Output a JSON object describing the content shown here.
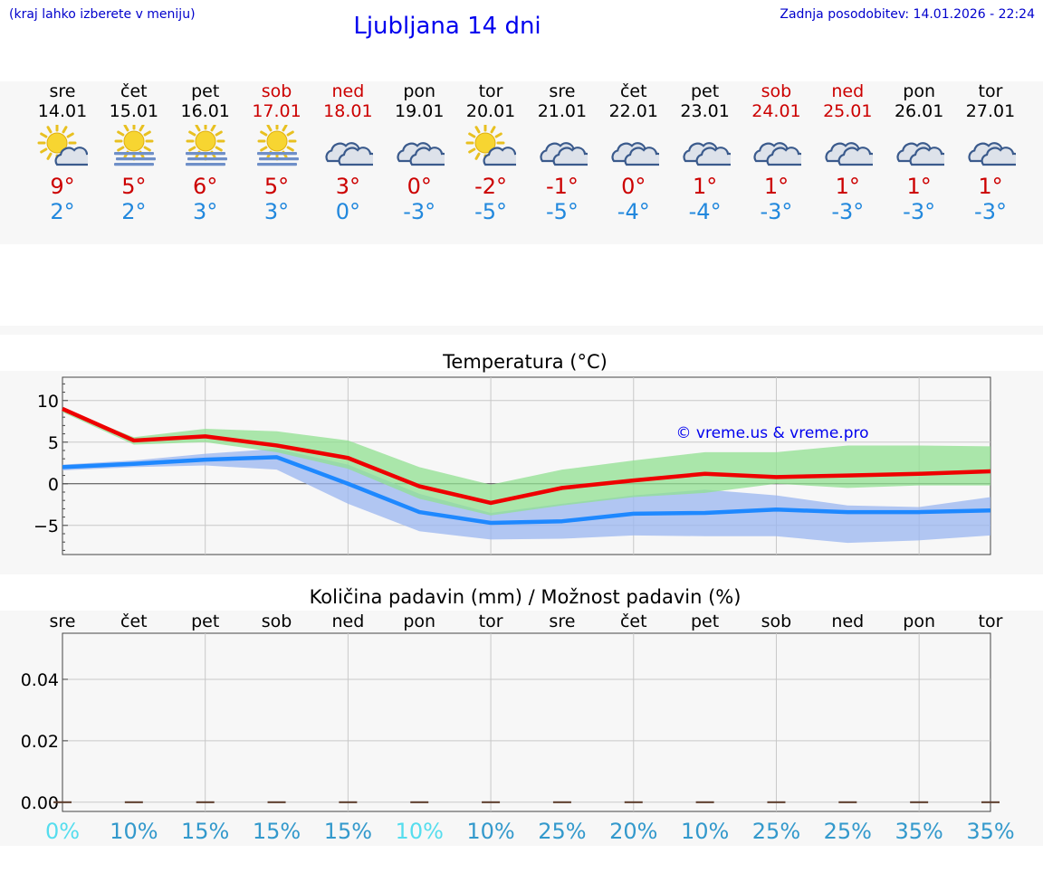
{
  "header": {
    "note": "(kraj lahko izberete v meniju)",
    "title": "Ljubljana 14 dni",
    "updated": "Zadnja posodobitev: 14.01.2026 - 22:24"
  },
  "days": [
    {
      "name": "sre",
      "date": "14.01",
      "weekend": false,
      "icon": "sun-cloud-icon",
      "tmax": "9°",
      "tmin": "2°"
    },
    {
      "name": "čet",
      "date": "15.01",
      "weekend": false,
      "icon": "sun-fog-icon",
      "tmax": "5°",
      "tmin": "2°"
    },
    {
      "name": "pet",
      "date": "16.01",
      "weekend": false,
      "icon": "sun-fog-icon",
      "tmax": "6°",
      "tmin": "3°"
    },
    {
      "name": "sob",
      "date": "17.01",
      "weekend": true,
      "icon": "sun-fog-icon",
      "tmax": "5°",
      "tmin": "3°"
    },
    {
      "name": "ned",
      "date": "18.01",
      "weekend": true,
      "icon": "cloudy-icon",
      "tmax": "3°",
      "tmin": "0°"
    },
    {
      "name": "pon",
      "date": "19.01",
      "weekend": false,
      "icon": "cloudy-icon",
      "tmax": "0°",
      "tmin": "-3°"
    },
    {
      "name": "tor",
      "date": "20.01",
      "weekend": false,
      "icon": "sun-cloud-icon",
      "tmax": "-2°",
      "tmin": "-5°"
    },
    {
      "name": "sre",
      "date": "21.01",
      "weekend": false,
      "icon": "cloudy-icon",
      "tmax": "-1°",
      "tmin": "-5°"
    },
    {
      "name": "čet",
      "date": "22.01",
      "weekend": false,
      "icon": "cloudy-icon",
      "tmax": "0°",
      "tmin": "-4°"
    },
    {
      "name": "pet",
      "date": "23.01",
      "weekend": false,
      "icon": "cloudy-icon",
      "tmax": "1°",
      "tmin": "-4°"
    },
    {
      "name": "sob",
      "date": "24.01",
      "weekend": true,
      "icon": "cloudy-icon",
      "tmax": "1°",
      "tmin": "-3°"
    },
    {
      "name": "ned",
      "date": "25.01",
      "weekend": true,
      "icon": "cloudy-icon",
      "tmax": "1°",
      "tmin": "-3°"
    },
    {
      "name": "pon",
      "date": "26.01",
      "weekend": false,
      "icon": "cloudy-icon",
      "tmax": "1°",
      "tmin": "-3°"
    },
    {
      "name": "tor",
      "date": "27.01",
      "weekend": false,
      "icon": "cloudy-icon",
      "tmax": "1°",
      "tmin": "-3°"
    }
  ],
  "colors": {
    "max_line": "#ee0000",
    "min_line": "#1e88ff",
    "max_band": "#90e090",
    "min_band": "#9ab6f0",
    "weekend": "#cc0000",
    "weekday": "#000000",
    "low_prob": "#55ddee",
    "prob": "#3399cc"
  },
  "chart_data": [
    {
      "type": "line",
      "title": "Temperatura (°C)",
      "watermark": "© vreme.us & vreme.pro",
      "ylim": [
        -8.5,
        12.8
      ],
      "yticks": [
        10,
        5,
        0,
        -5
      ],
      "ytick_labels": [
        "10",
        "5",
        "0",
        "−5"
      ],
      "grid": true,
      "series": [
        {
          "role": "max",
          "values": [
            9,
            5.2,
            5.7,
            4.6,
            3.1,
            -0.3,
            -2.3,
            -0.5,
            0.4,
            1.2,
            0.8,
            1.0,
            1.2,
            1.5
          ],
          "band_high": [
            9,
            5.6,
            6.6,
            6.3,
            5.2,
            2,
            -0.1,
            1.7,
            2.8,
            3.8,
            3.8,
            4.6,
            4.6,
            4.5
          ],
          "band_low": [
            8.6,
            4.7,
            5,
            3.8,
            1.8,
            -1.8,
            -3.8,
            -2.6,
            -1.6,
            -1.1,
            0,
            -0.5,
            -0.2,
            -0.2
          ]
        },
        {
          "role": "min",
          "values": [
            2,
            2.4,
            2.9,
            3.2,
            0,
            -3.4,
            -4.7,
            -4.5,
            -3.6,
            -3.5,
            -3.1,
            -3.4,
            -3.4,
            -3.2
          ],
          "band_high": [
            2.3,
            2.8,
            3.6,
            4.2,
            2.3,
            -1.2,
            -3.5,
            -2.4,
            -1.4,
            -0.7,
            -1.4,
            -2.6,
            -2.8,
            -1.6
          ],
          "band_low": [
            1.6,
            2,
            2.2,
            1.7,
            -2.4,
            -5.7,
            -6.7,
            -6.6,
            -6.2,
            -6.3,
            -6.3,
            -7.1,
            -6.8,
            -6.2
          ]
        }
      ]
    },
    {
      "type": "bar",
      "title": "Količina padavin (mm) / Možnost padavin (%)",
      "categories": [
        "sre",
        "čet",
        "pet",
        "sob",
        "ned",
        "pon",
        "tor",
        "sre",
        "čet",
        "pet",
        "sob",
        "ned",
        "pon",
        "tor"
      ],
      "values": [
        0,
        0,
        0,
        0,
        0,
        0,
        0,
        0,
        0,
        0,
        0,
        0,
        0,
        0
      ],
      "ylim": [
        -0.003,
        0.055
      ],
      "yticks": [
        0.04,
        0.02,
        0.0
      ],
      "ytick_labels": [
        "0.04",
        "0.02",
        "0.00"
      ],
      "probability": [
        "0%",
        "10%",
        "15%",
        "15%",
        "15%",
        "10%",
        "10%",
        "25%",
        "20%",
        "10%",
        "25%",
        "25%",
        "35%",
        "35%"
      ],
      "prob_values": [
        0,
        10,
        15,
        15,
        15,
        10,
        10,
        25,
        20,
        10,
        25,
        25,
        35,
        35
      ]
    }
  ]
}
